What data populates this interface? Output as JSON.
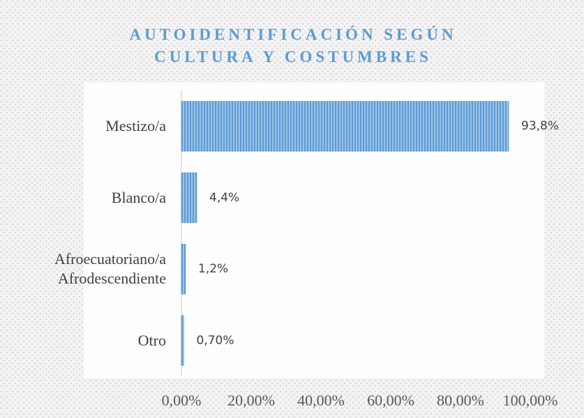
{
  "chart_data": {
    "type": "hbar",
    "title": "AUTOIDENTIFICACIÓN SEGÚN CULTURA Y COSTUMBRES",
    "categories": [
      "Mestizo/a",
      "Blanco/a",
      "Afroecuatoriano/a Afrodescendiente",
      "Otro"
    ],
    "values": [
      93.8,
      4.4,
      1.2,
      0.7
    ],
    "value_labels": [
      "93,8%",
      "4,4%",
      "1,2%",
      "0,70%"
    ],
    "color": "#5b9bd5",
    "xlim": [
      0,
      100
    ],
    "xticks": [
      {
        "value": 0,
        "label": "0,00%"
      },
      {
        "value": 20,
        "label": "20,00%"
      },
      {
        "value": 40,
        "label": "40,00%"
      },
      {
        "value": 60,
        "label": "60,00%"
      },
      {
        "value": 80,
        "label": "80,00%"
      },
      {
        "value": 100,
        "label": "100,00%"
      }
    ],
    "grid": false
  }
}
